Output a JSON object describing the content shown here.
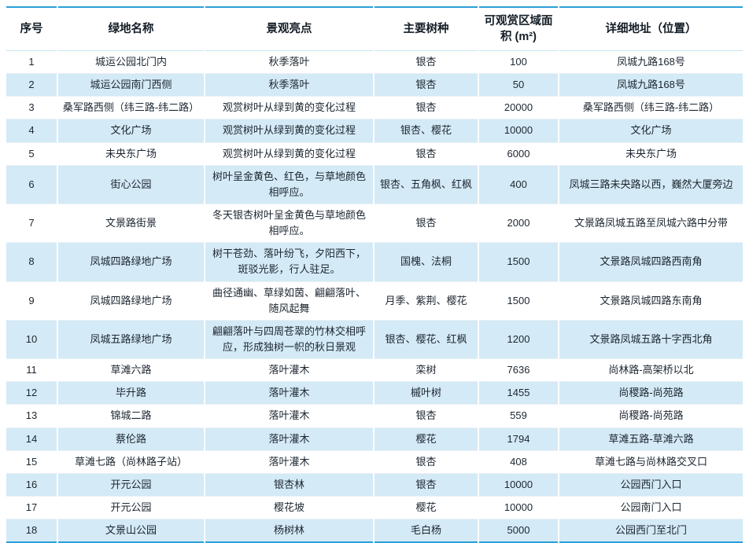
{
  "table": {
    "columns": [
      {
        "label": "序号"
      },
      {
        "label": "绿地名称"
      },
      {
        "label": "景观亮点"
      },
      {
        "label": "主要树种"
      },
      {
        "label": "可观赏区域面积 (m²)"
      },
      {
        "label": "详细地址（位置）"
      }
    ],
    "rows": [
      [
        "1",
        "城运公园北门内",
        "秋季落叶",
        "银杏",
        "100",
        "凤城九路168号"
      ],
      [
        "2",
        "城运公园南门西侧",
        "秋季落叶",
        "银杏",
        "50",
        "凤城九路168号"
      ],
      [
        "3",
        "桑军路西侧（纬三路-纬二路）",
        "观赏树叶从绿到黄的变化过程",
        "银杏",
        "20000",
        "桑军路西侧（纬三路-纬二路）"
      ],
      [
        "4",
        "文化广场",
        "观赏树叶从绿到黄的变化过程",
        "银杏、樱花",
        "10000",
        "文化广场"
      ],
      [
        "5",
        "未央东广场",
        "观赏树叶从绿到黄的变化过程",
        "银杏",
        "6000",
        "未央东广场"
      ],
      [
        "6",
        "街心公园",
        "树叶呈金黄色、红色，与草地颜色相呼应。",
        "银杏、五角枫、红枫",
        "400",
        "凤城三路未央路以西，巍然大厦旁边"
      ],
      [
        "7",
        "文景路街景",
        "冬天银杏树叶呈金黄色与草地颜色相呼应。",
        "银杏",
        "2000",
        "文景路凤城五路至凤城六路中分带"
      ],
      [
        "8",
        "凤城四路绿地广场",
        "树干苍劲、落叶纷飞，夕阳西下，斑驳光影，行人驻足。",
        "国槐、法桐",
        "1500",
        "文景路凤城四路西南角"
      ],
      [
        "9",
        "凤城四路绿地广场",
        "曲径通幽、草绿如茵、翩翩落叶、随风起舞",
        "月季、紫荆、樱花",
        "1500",
        "文景路凤城四路东南角"
      ],
      [
        "10",
        "凤城五路绿地广场",
        "翩翩落叶与四周苍翠的竹林交相呼应，形成独树一帜的秋日景观",
        "银杏、樱花、红枫",
        "1200",
        "文景路凤城五路十字西北角"
      ],
      [
        "11",
        "草滩六路",
        "落叶灌木",
        "栾树",
        "7636",
        "尚林路-高架桥以北"
      ],
      [
        "12",
        "毕升路",
        "落叶灌木",
        "槭叶树",
        "1455",
        "尚稷路-尚苑路"
      ],
      [
        "13",
        "锦城二路",
        "落叶灌木",
        "银杏",
        "559",
        "尚稷路-尚苑路"
      ],
      [
        "14",
        "蔡伦路",
        "落叶灌木",
        "樱花",
        "1794",
        "草滩五路-草滩六路"
      ],
      [
        "15",
        "草滩七路（尚林路子站）",
        "落叶灌木",
        "银杏",
        "408",
        "草滩七路与尚林路交叉口"
      ],
      [
        "16",
        "开元公园",
        "银杏林",
        "银杏",
        "10000",
        "公园西门入口"
      ],
      [
        "17",
        "开元公园",
        "樱花坡",
        "樱花",
        "10000",
        "公园南门入口"
      ],
      [
        "18",
        "文景山公园",
        "杨树林",
        "毛白杨",
        "5000",
        "公园西门至北门"
      ]
    ]
  },
  "colors": {
    "accent_blue": "#2b9fd8",
    "band_blue": "#d4eaf6",
    "header_rule": "#c9e2ef"
  }
}
